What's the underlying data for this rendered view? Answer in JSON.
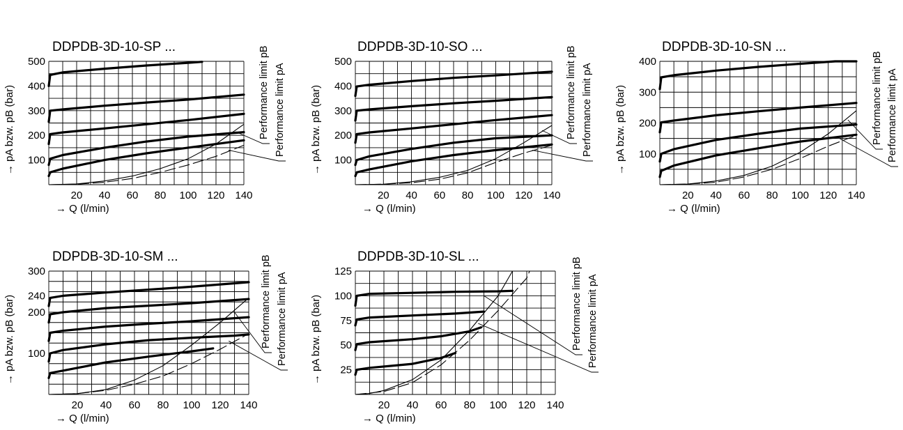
{
  "chart_data": [
    {
      "type": "line",
      "title": "DDPDB-3D-10-SP ...",
      "xlabel": "→ Q (l/min)",
      "ylabel": "→ pA bzw. pB (bar)",
      "x_ticks": [
        "20",
        "40",
        "60",
        "80",
        "100",
        "120",
        "140"
      ],
      "y_ticks": [
        "100",
        "200",
        "300",
        "400",
        "500"
      ],
      "xlim": [
        0,
        140
      ],
      "ylim": [
        0,
        500
      ],
      "grid": true,
      "series": [
        {
          "x": [
            0,
            1,
            10,
            40,
            70,
            100,
            110
          ],
          "y": [
            400,
            445,
            455,
            470,
            483,
            494,
            498
          ]
        },
        {
          "x": [
            0,
            1,
            10,
            40,
            70,
            100,
            140
          ],
          "y": [
            255,
            300,
            305,
            320,
            333,
            345,
            365
          ]
        },
        {
          "x": [
            0,
            1,
            10,
            40,
            70,
            100,
            140
          ],
          "y": [
            165,
            205,
            212,
            228,
            245,
            262,
            287
          ]
        },
        {
          "x": [
            0,
            1,
            10,
            40,
            70,
            100,
            140
          ],
          "y": [
            80,
            105,
            120,
            150,
            175,
            195,
            213
          ]
        },
        {
          "x": [
            0,
            1,
            10,
            40,
            70,
            100,
            140
          ],
          "y": [
            35,
            50,
            65,
            100,
            127,
            150,
            180
          ]
        }
      ],
      "limits": [
        {
          "label": "Performance limit pB",
          "style": "solid",
          "x": [
            0,
            20,
            40,
            60,
            80,
            100,
            120,
            140
          ],
          "y": [
            0,
            3,
            15,
            35,
            65,
            105,
            165,
            245
          ]
        },
        {
          "label": "Performance limit pA",
          "style": "dashed",
          "x": [
            0,
            20,
            40,
            60,
            80,
            100,
            120,
            140
          ],
          "y": [
            0,
            2,
            10,
            25,
            50,
            80,
            115,
            160
          ]
        }
      ]
    },
    {
      "type": "line",
      "title": "DDPDB-3D-10-SO ...",
      "xlabel": "→ Q (l/min)",
      "ylabel": "→ pA bzw. pB (bar)",
      "x_ticks": [
        "20",
        "40",
        "60",
        "80",
        "100",
        "120",
        "140"
      ],
      "y_ticks": [
        "100",
        "200",
        "300",
        "400",
        "500"
      ],
      "xlim": [
        0,
        140
      ],
      "ylim": [
        0,
        500
      ],
      "grid": true,
      "series": [
        {
          "x": [
            0,
            1,
            10,
            40,
            70,
            100,
            140
          ],
          "y": [
            360,
            398,
            405,
            420,
            433,
            443,
            458
          ]
        },
        {
          "x": [
            0,
            1,
            10,
            40,
            70,
            100,
            140
          ],
          "y": [
            260,
            300,
            305,
            318,
            330,
            340,
            355
          ]
        },
        {
          "x": [
            0,
            1,
            10,
            40,
            70,
            100,
            140
          ],
          "y": [
            170,
            205,
            212,
            228,
            245,
            262,
            282
          ]
        },
        {
          "x": [
            0,
            1,
            10,
            40,
            70,
            100,
            140
          ],
          "y": [
            80,
            100,
            115,
            145,
            170,
            188,
            200
          ]
        },
        {
          "x": [
            0,
            1,
            10,
            40,
            70,
            100,
            140
          ],
          "y": [
            35,
            50,
            62,
            95,
            120,
            140,
            163
          ]
        }
      ],
      "limits": [
        {
          "label": "Performance limit pB",
          "style": "solid",
          "x": [
            0,
            20,
            40,
            60,
            80,
            100,
            120,
            140
          ],
          "y": [
            0,
            2,
            12,
            30,
            58,
            105,
            170,
            240
          ]
        },
        {
          "label": "Performance limit pA",
          "style": "dashed",
          "x": [
            0,
            20,
            40,
            60,
            80,
            100,
            120,
            140
          ],
          "y": [
            0,
            2,
            8,
            22,
            48,
            90,
            128,
            160
          ]
        }
      ]
    },
    {
      "type": "line",
      "title": "DDPDB-3D-10-SN ...",
      "xlabel": "→ Q (l/min)",
      "ylabel": "→ pA bzw. pB (bar)",
      "x_ticks": [
        "20",
        "40",
        "60",
        "80",
        "100",
        "120",
        "140"
      ],
      "y_ticks": [
        "100",
        "200",
        "300",
        "400"
      ],
      "xlim": [
        0,
        140
      ],
      "ylim": [
        0,
        400
      ],
      "grid": true,
      "series": [
        {
          "x": [
            0,
            1,
            10,
            40,
            70,
            100,
            125,
            140
          ],
          "y": [
            310,
            348,
            355,
            370,
            382,
            392,
            400,
            400
          ]
        },
        {
          "x": [
            0,
            1,
            10,
            40,
            70,
            100,
            140
          ],
          "y": [
            170,
            202,
            208,
            225,
            238,
            250,
            265
          ]
        },
        {
          "x": [
            0,
            1,
            10,
            40,
            70,
            100,
            140
          ],
          "y": [
            75,
            100,
            115,
            145,
            165,
            182,
            195
          ]
        },
        {
          "x": [
            0,
            1,
            10,
            40,
            70,
            100,
            140
          ],
          "y": [
            25,
            45,
            62,
            95,
            118,
            140,
            162
          ]
        }
      ],
      "limits": [
        {
          "label": "Performance limit pB",
          "style": "solid",
          "x": [
            0,
            20,
            40,
            60,
            80,
            100,
            120,
            140
          ],
          "y": [
            0,
            2,
            12,
            30,
            60,
            105,
            165,
            240
          ]
        },
        {
          "label": "Performance limit pA",
          "style": "dashed",
          "x": [
            0,
            20,
            40,
            60,
            80,
            100,
            120,
            140
          ],
          "y": [
            0,
            2,
            8,
            25,
            50,
            85,
            125,
            160
          ]
        }
      ]
    },
    {
      "type": "line",
      "title": "DDPDB-3D-10-SM ...",
      "xlabel": "→ Q (l/min)",
      "ylabel": "→ pA bzw. pB (bar)",
      "x_ticks": [
        "20",
        "40",
        "60",
        "80",
        "100",
        "120",
        "140"
      ],
      "y_ticks": [
        "100",
        "200",
        "240",
        "300"
      ],
      "xlim": [
        0,
        140
      ],
      "ylim": [
        0,
        300
      ],
      "grid": true,
      "series": [
        {
          "x": [
            0,
            1,
            10,
            40,
            70,
            100,
            140
          ],
          "y": [
            215,
            235,
            240,
            248,
            255,
            262,
            273
          ]
        },
        {
          "x": [
            0,
            1,
            10,
            40,
            70,
            100,
            140
          ],
          "y": [
            175,
            195,
            200,
            210,
            216,
            222,
            232
          ]
        },
        {
          "x": [
            0,
            1,
            10,
            40,
            70,
            100,
            140
          ],
          "y": [
            130,
            150,
            155,
            165,
            172,
            178,
            188
          ]
        },
        {
          "x": [
            0,
            1,
            10,
            40,
            70,
            100,
            130,
            140
          ],
          "y": [
            80,
            100,
            108,
            122,
            132,
            138,
            143,
            146
          ]
        },
        {
          "x": [
            0,
            1,
            10,
            40,
            70,
            100,
            115
          ],
          "y": [
            40,
            52,
            58,
            78,
            92,
            105,
            112
          ]
        }
      ],
      "limits": [
        {
          "label": "Performance limit pB",
          "style": "solid",
          "x": [
            0,
            20,
            40,
            60,
            80,
            100,
            120,
            140
          ],
          "y": [
            0,
            2,
            12,
            35,
            70,
            120,
            175,
            235
          ]
        },
        {
          "label": "Performance limit pA",
          "style": "dashed",
          "x": [
            0,
            20,
            40,
            60,
            80,
            100,
            120,
            140
          ],
          "y": [
            0,
            2,
            10,
            25,
            45,
            75,
            110,
            148
          ]
        }
      ]
    },
    {
      "type": "line",
      "title": "DDPDB-3D-10-SL ...",
      "xlabel": "→ Q (l/min)",
      "ylabel": "→ pA bzw. pB (bar)",
      "x_ticks": [
        "20",
        "40",
        "60",
        "80",
        "100",
        "120",
        "140"
      ],
      "y_ticks": [
        "25",
        "50",
        "75",
        "100",
        "125"
      ],
      "xlim": [
        0,
        140
      ],
      "ylim": [
        0,
        125
      ],
      "grid": true,
      "series": [
        {
          "x": [
            0,
            1,
            10,
            40,
            70,
            100,
            110
          ],
          "y": [
            90,
            100,
            102,
            103,
            104,
            104.5,
            105
          ]
        },
        {
          "x": [
            0,
            1,
            10,
            40,
            70,
            90
          ],
          "y": [
            70,
            76,
            78,
            80,
            82,
            84
          ]
        },
        {
          "x": [
            0,
            1,
            10,
            40,
            60,
            80,
            88
          ],
          "y": [
            45,
            51,
            53,
            56,
            59,
            64,
            68
          ]
        },
        {
          "x": [
            0,
            1,
            10,
            40,
            60,
            70
          ],
          "y": [
            20,
            25,
            27,
            31,
            37,
            42
          ]
        }
      ],
      "limits": [
        {
          "label": "Performance limit pB",
          "style": "solid",
          "x": [
            0,
            10,
            20,
            40,
            60,
            80,
            100,
            110
          ],
          "y": [
            0,
            1,
            4,
            15,
            35,
            65,
            100,
            125
          ]
        },
        {
          "label": "Performance limit pA",
          "style": "dashed",
          "x": [
            0,
            20,
            40,
            60,
            80,
            100,
            120,
            122
          ],
          "y": [
            0,
            3,
            12,
            30,
            55,
            85,
            118,
            125
          ]
        }
      ]
    }
  ]
}
